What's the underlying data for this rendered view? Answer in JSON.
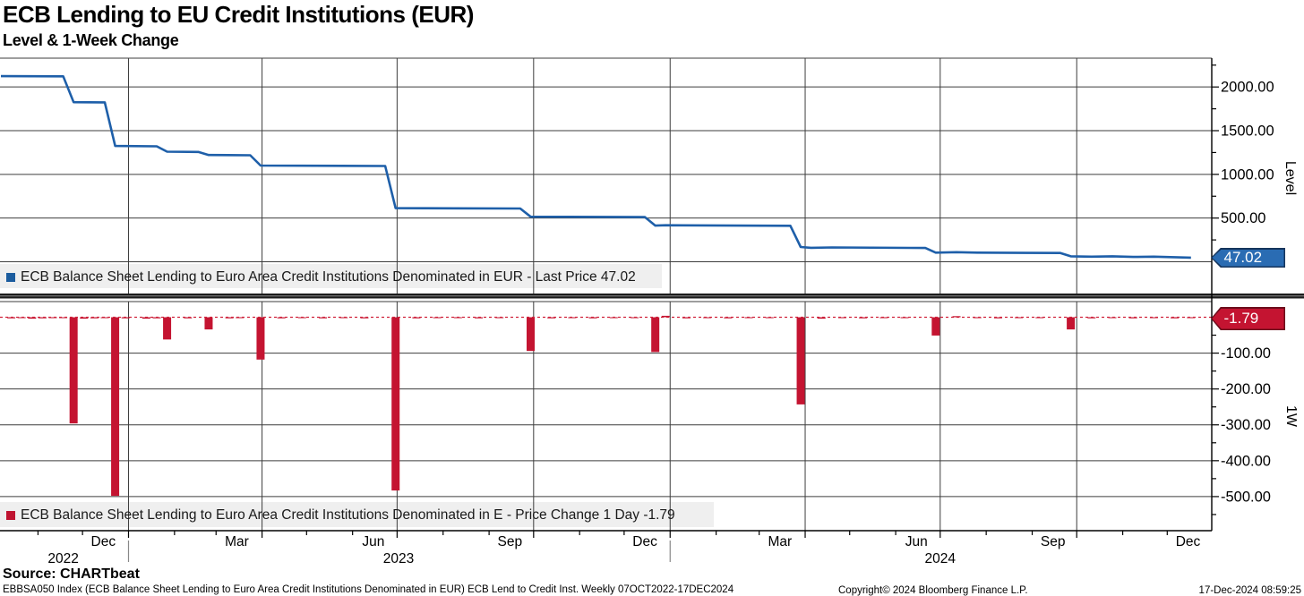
{
  "header": {
    "title": "ECB Lending to EU Credit Institutions (EUR)",
    "subtitle": "Level & 1-Week Change"
  },
  "legends": {
    "level": {
      "label": "ECB Balance Sheet Lending to Euro Area Credit Institutions Denominated in EUR - Last Price 47.02",
      "color": "#1b5c9e"
    },
    "change": {
      "label": "ECB Balance Sheet Lending to Euro Area Credit Institutions Denominated in E - Price Change 1 Day -1.79",
      "color": "#bf1330"
    }
  },
  "badges": {
    "level": {
      "text": "47.02",
      "fill": "#2a6cb3",
      "border": "#16355c"
    },
    "change": {
      "text": "-1.79",
      "fill": "#c41431",
      "border": "#6d0d1c"
    }
  },
  "axis_right": {
    "level_label": "Level",
    "change_label": "1W"
  },
  "footer": {
    "source": "Source: CHARTbeat",
    "description": "EBBSA050 Index (ECB Balance Sheet Lending to Euro Area Credit Institutions Denominated in EUR) ECB Lend to Credit Inst.  Weekly 07OCT2022-17DEC2024",
    "copyright": "Copyright© 2024 Bloomberg Finance L.P.",
    "timestamp": "17-Dec-2024 08:59:25"
  },
  "chart_data": {
    "type": "line+bar",
    "frequency": "Weekly",
    "time_domain": [
      "2022-10-07",
      "2024-12-31"
    ],
    "x_gridlines": [
      "2023-01-01",
      "2023-04-01",
      "2023-07-01",
      "2023-10-01",
      "2024-01-01",
      "2024-04-01",
      "2024-07-01",
      "2024-10-01"
    ],
    "x_quarter_labels": [
      {
        "date": "2022-12-15",
        "label": "Dec"
      },
      {
        "date": "2023-03-15",
        "label": "Mar"
      },
      {
        "date": "2023-06-15",
        "label": "Jun"
      },
      {
        "date": "2023-09-15",
        "label": "Sep"
      },
      {
        "date": "2023-12-15",
        "label": "Dec"
      },
      {
        "date": "2024-03-15",
        "label": "Mar"
      },
      {
        "date": "2024-06-15",
        "label": "Jun"
      },
      {
        "date": "2024-09-15",
        "label": "Sep"
      },
      {
        "date": "2024-12-15",
        "label": "Dec"
      }
    ],
    "year_labels": [
      {
        "date": "2022-11-18",
        "label": "2022"
      },
      {
        "date": "2023-07-02",
        "label": "2023"
      },
      {
        "date": "2024-07-01",
        "label": "2024"
      }
    ],
    "year_separators": [
      "2023-01-01",
      "2024-01-01"
    ],
    "level_panel": {
      "name": "Level",
      "series_name": "ECB Balance Sheet Lending to Euro Area Credit Institutions Denominated in EUR",
      "color": "#1e5fa9",
      "last_value": 47.02,
      "axis_ticks": [
        {
          "value": 2000,
          "label": "2000.00"
        },
        {
          "value": 1500,
          "label": "1500.00"
        },
        {
          "value": 1000,
          "label": "1000.00"
        },
        {
          "value": 500,
          "label": "500.00"
        }
      ],
      "minor_ticks": [
        2250,
        1750,
        1250,
        750,
        250
      ],
      "gridline_values": [
        2000,
        1500,
        1000,
        500,
        0
      ],
      "points": [
        [
          "2022-10-07",
          2124
        ],
        [
          "2022-11-18",
          2122
        ],
        [
          "2022-11-25",
          1826
        ],
        [
          "2022-12-16",
          1824
        ],
        [
          "2022-12-23",
          1325
        ],
        [
          "2023-01-20",
          1321
        ],
        [
          "2023-01-27",
          1259
        ],
        [
          "2023-02-17",
          1256
        ],
        [
          "2023-02-24",
          1222
        ],
        [
          "2023-03-24",
          1219
        ],
        [
          "2023-03-31",
          1101
        ],
        [
          "2023-06-23",
          1096
        ],
        [
          "2023-06-30",
          613
        ],
        [
          "2023-09-22",
          609
        ],
        [
          "2023-09-29",
          515
        ],
        [
          "2023-12-15",
          511
        ],
        [
          "2023-12-22",
          414
        ],
        [
          "2023-12-29",
          418
        ],
        [
          "2024-03-22",
          412
        ],
        [
          "2024-03-29",
          169
        ],
        [
          "2024-04-05",
          160
        ],
        [
          "2024-04-19",
          164
        ],
        [
          "2024-06-21",
          158
        ],
        [
          "2024-06-28",
          104
        ],
        [
          "2024-07-12",
          110
        ],
        [
          "2024-07-26",
          104
        ],
        [
          "2024-09-20",
          100
        ],
        [
          "2024-09-27",
          62
        ],
        [
          "2024-10-11",
          58
        ],
        [
          "2024-10-25",
          62
        ],
        [
          "2024-11-08",
          55
        ],
        [
          "2024-11-22",
          58
        ],
        [
          "2024-12-06",
          52
        ],
        [
          "2024-12-17",
          47.02
        ]
      ]
    },
    "change_panel": {
      "name": "1W",
      "series_name": "ECB Balance Sheet Lending to Euro Area Credit Institutions Denominated in E",
      "color": "#c41431",
      "zero_line_color": "#d0213a",
      "last_value": -1.79,
      "axis_ticks": [
        {
          "value": -100,
          "label": "-100.00"
        },
        {
          "value": -200,
          "label": "-200.00"
        },
        {
          "value": -300,
          "label": "-300.00"
        },
        {
          "value": -400,
          "label": "-400.00"
        },
        {
          "value": -500,
          "label": "-500.00"
        }
      ],
      "minor_ticks": [
        -50,
        -150,
        -250,
        -350,
        -450,
        -550
      ],
      "gridline_values": [
        -100,
        -200,
        -300,
        -400,
        -500
      ],
      "bars": [
        [
          "2022-10-14",
          -3
        ],
        [
          "2022-10-21",
          -2
        ],
        [
          "2022-10-28",
          -4
        ],
        [
          "2022-11-04",
          -3
        ],
        [
          "2022-11-11",
          -2
        ],
        [
          "2022-11-18",
          -2
        ],
        [
          "2022-11-25",
          -296
        ],
        [
          "2022-12-02",
          -4
        ],
        [
          "2022-12-09",
          -3
        ],
        [
          "2022-12-16",
          -2
        ],
        [
          "2022-12-23",
          -498
        ],
        [
          "2022-12-30",
          -3
        ],
        [
          "2023-01-13",
          -4
        ],
        [
          "2023-01-20",
          -3
        ],
        [
          "2023-01-27",
          -62
        ],
        [
          "2023-02-10",
          -3
        ],
        [
          "2023-02-24",
          -34
        ],
        [
          "2023-03-10",
          -3
        ],
        [
          "2023-03-17",
          -2
        ],
        [
          "2023-03-31",
          -118
        ],
        [
          "2023-04-14",
          -3
        ],
        [
          "2023-04-28",
          -2
        ],
        [
          "2023-05-12",
          -3
        ],
        [
          "2023-05-26",
          -2
        ],
        [
          "2023-06-09",
          -3
        ],
        [
          "2023-06-30",
          -483
        ],
        [
          "2023-07-14",
          -3
        ],
        [
          "2023-07-28",
          -2
        ],
        [
          "2023-08-11",
          -2
        ],
        [
          "2023-08-25",
          -3
        ],
        [
          "2023-09-08",
          -2
        ],
        [
          "2023-09-29",
          -94
        ],
        [
          "2023-10-13",
          -3
        ],
        [
          "2023-10-27",
          -2
        ],
        [
          "2023-11-10",
          -3
        ],
        [
          "2023-11-24",
          -2
        ],
        [
          "2023-12-08",
          -2
        ],
        [
          "2023-12-22",
          -97
        ],
        [
          "2023-12-29",
          4
        ],
        [
          "2024-01-12",
          -3
        ],
        [
          "2024-01-26",
          -2
        ],
        [
          "2024-02-09",
          -3
        ],
        [
          "2024-02-23",
          -2
        ],
        [
          "2024-03-08",
          -2
        ],
        [
          "2024-03-29",
          -243
        ],
        [
          "2024-04-12",
          -4
        ],
        [
          "2024-04-26",
          -2
        ],
        [
          "2024-05-10",
          -3
        ],
        [
          "2024-05-24",
          -2
        ],
        [
          "2024-06-07",
          -2
        ],
        [
          "2024-06-28",
          -51
        ],
        [
          "2024-07-12",
          3
        ],
        [
          "2024-07-26",
          -2
        ],
        [
          "2024-08-09",
          -3
        ],
        [
          "2024-08-23",
          -2
        ],
        [
          "2024-09-06",
          -2
        ],
        [
          "2024-09-27",
          -34
        ],
        [
          "2024-10-11",
          -3
        ],
        [
          "2024-10-25",
          -2
        ],
        [
          "2024-11-08",
          -3
        ],
        [
          "2024-11-22",
          -2
        ],
        [
          "2024-12-06",
          -3
        ],
        [
          "2024-12-17",
          -1.79
        ]
      ]
    }
  }
}
